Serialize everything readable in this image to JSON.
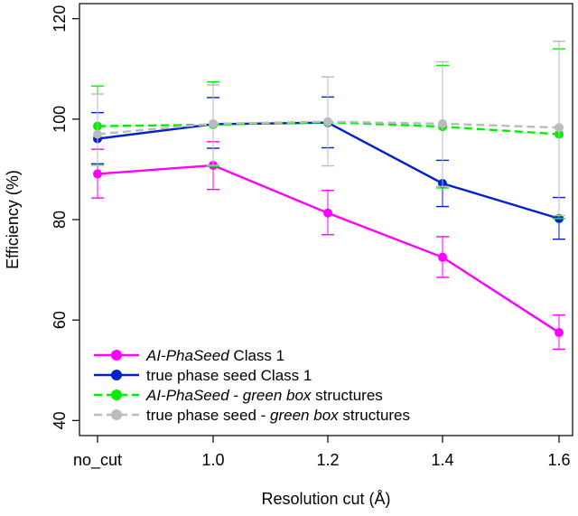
{
  "chart_data": {
    "type": "line",
    "title": "",
    "xlabel": "Resolution cut (Å)",
    "ylabel": "Efficiency (%)",
    "categories": [
      "no_cut",
      "1.0",
      "1.2",
      "1.4",
      "1.6"
    ],
    "ylim": [
      37,
      123
    ],
    "yticks": [
      40,
      60,
      80,
      100,
      120
    ],
    "grid": false,
    "legend_position": "bottom-left",
    "series": [
      {
        "name": "AI-PhaSeed Class 1",
        "legend_parts": [
          {
            "text": "AI-PhaSeed",
            "italic": true
          },
          {
            "text": " Class 1",
            "italic": false
          }
        ],
        "color": "#ff00ff",
        "dashed": false,
        "values": [
          89.1,
          90.8,
          81.3,
          72.5,
          57.5
        ],
        "err_low": [
          84.3,
          86.0,
          77.0,
          68.5,
          54.2
        ],
        "err_high": [
          94.0,
          95.5,
          85.8,
          76.6,
          61.0
        ]
      },
      {
        "name": "true phase seed Class 1",
        "legend_parts": [
          {
            "text": "true phase seed Class 1",
            "italic": false
          }
        ],
        "color": "#0022cc",
        "dashed": false,
        "values": [
          96.1,
          99.0,
          99.3,
          87.2,
          80.2
        ],
        "err_low": [
          91.1,
          94.2,
          94.3,
          82.6,
          76.1
        ],
        "err_high": [
          101.3,
          104.3,
          104.4,
          91.8,
          84.4
        ]
      },
      {
        "name": "AI-PhaSeed - green box structures",
        "legend_parts": [
          {
            "text": "AI-PhaSeed",
            "italic": true
          },
          {
            "text": " - ",
            "italic": false
          },
          {
            "text": "green box",
            "italic": true
          },
          {
            "text": " structures",
            "italic": false
          }
        ],
        "color": "#00ee00",
        "dashed": true,
        "values": [
          98.6,
          98.9,
          99.4,
          98.5,
          97.0
        ],
        "err_low": [
          90.8,
          90.6,
          null,
          86.3,
          80.2
        ],
        "err_high": [
          106.6,
          107.4,
          null,
          110.7,
          114.0
        ]
      },
      {
        "name": "true phase seed - green box structures",
        "legend_parts": [
          {
            "text": "true phase seed - ",
            "italic": false
          },
          {
            "text": "green box",
            "italic": true
          },
          {
            "text": " structures",
            "italic": false
          }
        ],
        "color": "#bbbbbb",
        "dashed": true,
        "values": [
          97.0,
          99.1,
          99.5,
          99.1,
          98.3
        ],
        "err_low": [
          90.8,
          90.8,
          90.7,
          86.6,
          80.8
        ],
        "err_high": [
          105.0,
          106.8,
          108.4,
          111.4,
          115.5
        ]
      }
    ]
  }
}
